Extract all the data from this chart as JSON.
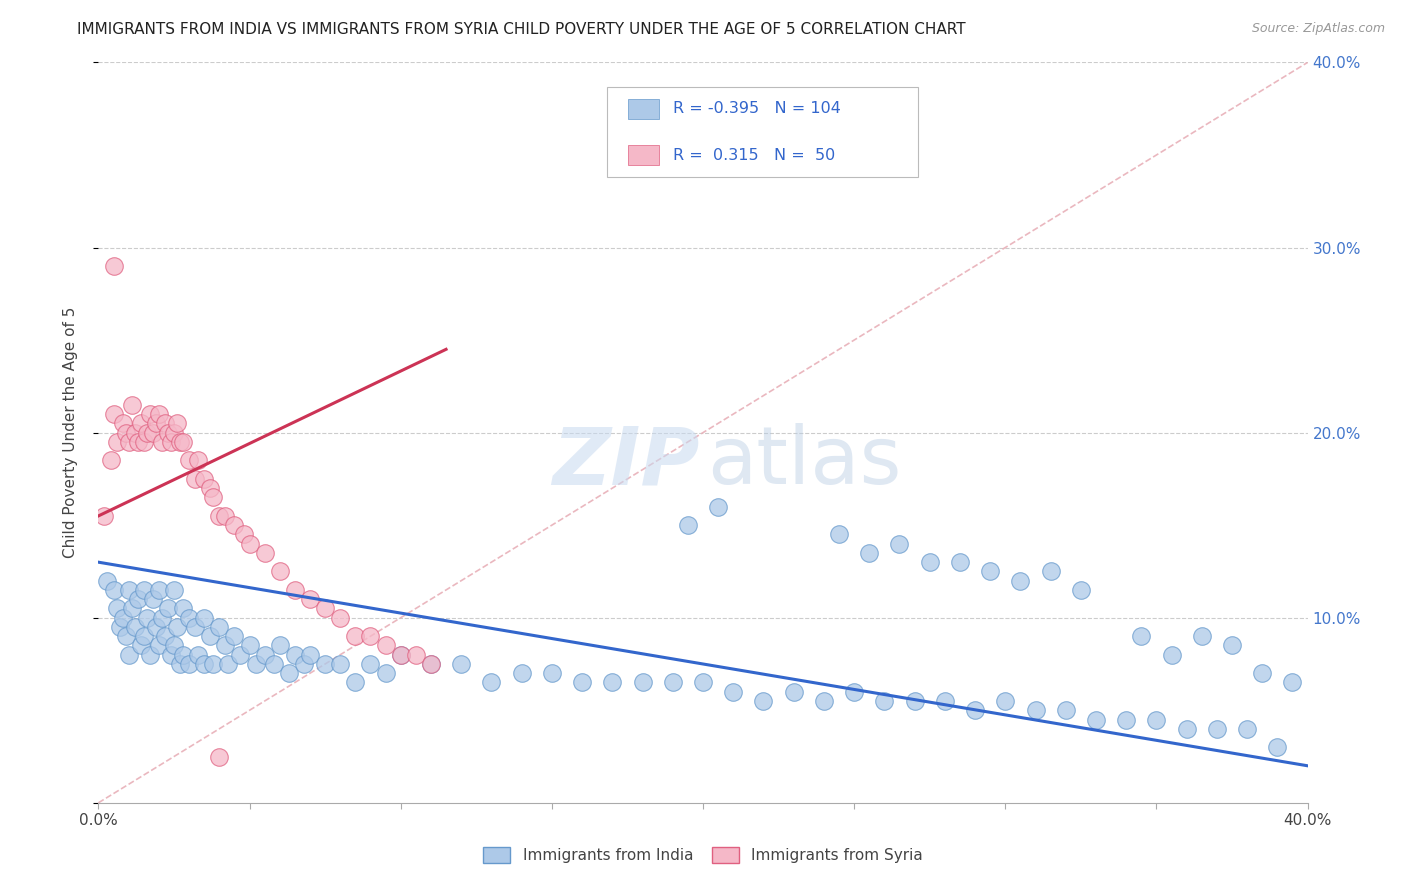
{
  "title": "IMMIGRANTS FROM INDIA VS IMMIGRANTS FROM SYRIA CHILD POVERTY UNDER THE AGE OF 5 CORRELATION CHART",
  "source": "Source: ZipAtlas.com",
  "ylabel": "Child Poverty Under the Age of 5",
  "xlim": [
    0.0,
    0.4
  ],
  "ylim": [
    0.0,
    0.4
  ],
  "india_color": "#adc9e8",
  "india_edge": "#6699cc",
  "syria_color": "#f5b8c8",
  "syria_edge": "#e06080",
  "india_line_color": "#3366cc",
  "syria_line_color": "#cc3355",
  "diagonal_color": "#e8b0b8",
  "legend_R_india": "-0.395",
  "legend_N_india": "104",
  "legend_R_syria": "0.315",
  "legend_N_syria": "50",
  "india_trend_x": [
    0.0,
    0.4
  ],
  "india_trend_y": [
    0.13,
    0.02
  ],
  "syria_trend_x": [
    0.0,
    0.115
  ],
  "syria_trend_y": [
    0.155,
    0.245
  ],
  "india_scatter_x": [
    0.003,
    0.005,
    0.006,
    0.007,
    0.008,
    0.009,
    0.01,
    0.01,
    0.011,
    0.012,
    0.013,
    0.014,
    0.015,
    0.015,
    0.016,
    0.017,
    0.018,
    0.019,
    0.02,
    0.02,
    0.021,
    0.022,
    0.023,
    0.024,
    0.025,
    0.025,
    0.026,
    0.027,
    0.028,
    0.028,
    0.03,
    0.03,
    0.032,
    0.033,
    0.035,
    0.035,
    0.037,
    0.038,
    0.04,
    0.042,
    0.043,
    0.045,
    0.047,
    0.05,
    0.052,
    0.055,
    0.058,
    0.06,
    0.063,
    0.065,
    0.068,
    0.07,
    0.075,
    0.08,
    0.085,
    0.09,
    0.095,
    0.1,
    0.11,
    0.12,
    0.13,
    0.14,
    0.15,
    0.16,
    0.17,
    0.18,
    0.19,
    0.2,
    0.21,
    0.22,
    0.23,
    0.24,
    0.25,
    0.26,
    0.27,
    0.28,
    0.29,
    0.3,
    0.31,
    0.32,
    0.33,
    0.34,
    0.35,
    0.36,
    0.37,
    0.38,
    0.39,
    0.195,
    0.205,
    0.245,
    0.255,
    0.265,
    0.275,
    0.285,
    0.295,
    0.305,
    0.315,
    0.325,
    0.345,
    0.355,
    0.365,
    0.375,
    0.385,
    0.395
  ],
  "india_scatter_y": [
    0.12,
    0.115,
    0.105,
    0.095,
    0.1,
    0.09,
    0.115,
    0.08,
    0.105,
    0.095,
    0.11,
    0.085,
    0.115,
    0.09,
    0.1,
    0.08,
    0.11,
    0.095,
    0.115,
    0.085,
    0.1,
    0.09,
    0.105,
    0.08,
    0.115,
    0.085,
    0.095,
    0.075,
    0.105,
    0.08,
    0.1,
    0.075,
    0.095,
    0.08,
    0.1,
    0.075,
    0.09,
    0.075,
    0.095,
    0.085,
    0.075,
    0.09,
    0.08,
    0.085,
    0.075,
    0.08,
    0.075,
    0.085,
    0.07,
    0.08,
    0.075,
    0.08,
    0.075,
    0.075,
    0.065,
    0.075,
    0.07,
    0.08,
    0.075,
    0.075,
    0.065,
    0.07,
    0.07,
    0.065,
    0.065,
    0.065,
    0.065,
    0.065,
    0.06,
    0.055,
    0.06,
    0.055,
    0.06,
    0.055,
    0.055,
    0.055,
    0.05,
    0.055,
    0.05,
    0.05,
    0.045,
    0.045,
    0.045,
    0.04,
    0.04,
    0.04,
    0.03,
    0.15,
    0.16,
    0.145,
    0.135,
    0.14,
    0.13,
    0.13,
    0.125,
    0.12,
    0.125,
    0.115,
    0.09,
    0.08,
    0.09,
    0.085,
    0.07,
    0.065
  ],
  "syria_scatter_x": [
    0.002,
    0.004,
    0.005,
    0.006,
    0.008,
    0.009,
    0.01,
    0.011,
    0.012,
    0.013,
    0.014,
    0.015,
    0.016,
    0.017,
    0.018,
    0.019,
    0.02,
    0.021,
    0.022,
    0.023,
    0.024,
    0.025,
    0.026,
    0.027,
    0.028,
    0.03,
    0.032,
    0.033,
    0.035,
    0.037,
    0.038,
    0.04,
    0.042,
    0.045,
    0.048,
    0.05,
    0.055,
    0.06,
    0.065,
    0.07,
    0.075,
    0.08,
    0.085,
    0.09,
    0.095,
    0.1,
    0.105,
    0.11,
    0.005,
    0.04
  ],
  "syria_scatter_y": [
    0.155,
    0.185,
    0.21,
    0.195,
    0.205,
    0.2,
    0.195,
    0.215,
    0.2,
    0.195,
    0.205,
    0.195,
    0.2,
    0.21,
    0.2,
    0.205,
    0.21,
    0.195,
    0.205,
    0.2,
    0.195,
    0.2,
    0.205,
    0.195,
    0.195,
    0.185,
    0.175,
    0.185,
    0.175,
    0.17,
    0.165,
    0.155,
    0.155,
    0.15,
    0.145,
    0.14,
    0.135,
    0.125,
    0.115,
    0.11,
    0.105,
    0.1,
    0.09,
    0.09,
    0.085,
    0.08,
    0.08,
    0.075,
    0.29,
    0.025
  ]
}
